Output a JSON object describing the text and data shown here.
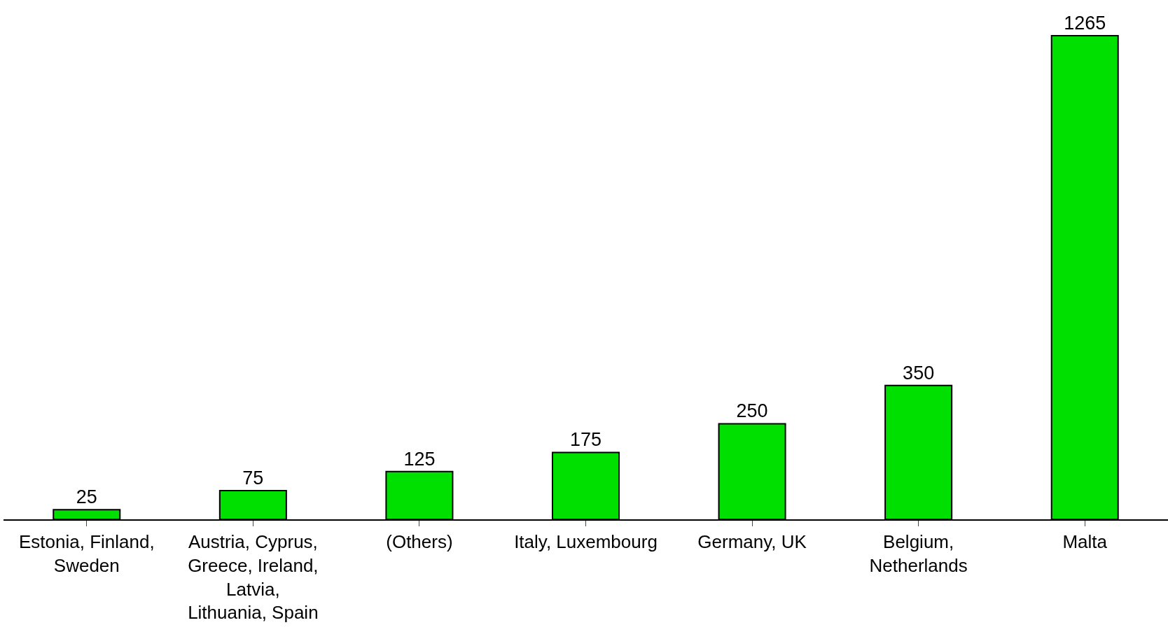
{
  "chart_data": {
    "type": "bar",
    "categories": [
      "Estonia, Finland, Sweden",
      "Austria, Cyprus, Greece, Ireland, Latvia, Lithuania, Spain",
      "(Others)",
      "Italy, Luxembourg",
      "Germany, UK",
      "Belgium, Netherlands",
      "Malta"
    ],
    "values": [
      25,
      75,
      125,
      175,
      250,
      350,
      1265
    ],
    "color": "#00e000",
    "data_labels": true,
    "tick_labels": "x"
  }
}
